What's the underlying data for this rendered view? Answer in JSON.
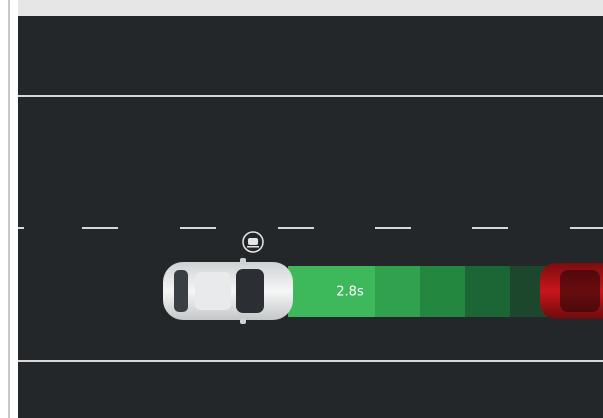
{
  "display": {
    "following_time": "2.8s"
  }
}
